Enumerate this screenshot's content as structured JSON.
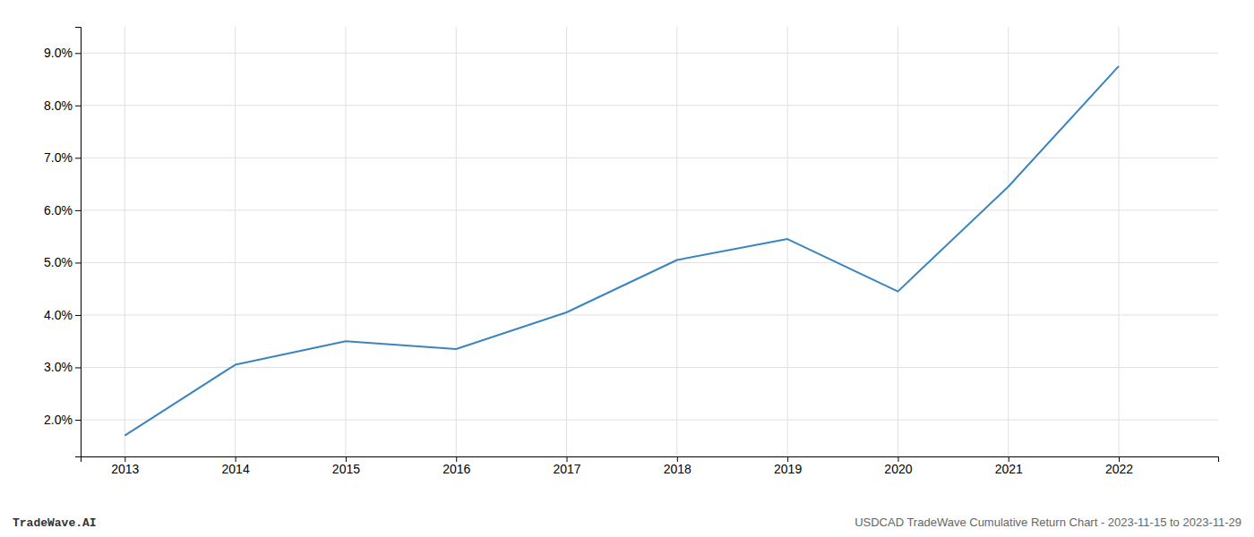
{
  "chart_data": {
    "type": "line",
    "x": [
      2013,
      2014,
      2015,
      2016,
      2017,
      2018,
      2019,
      2020,
      2021,
      2022
    ],
    "values": [
      0.017,
      0.0305,
      0.035,
      0.0335,
      0.0405,
      0.0505,
      0.0545,
      0.0445,
      0.0645,
      0.0875
    ],
    "color": "#3a85c0",
    "xlim": [
      2012.6,
      2022.9
    ],
    "xticks": [
      2013,
      2014,
      2015,
      2016,
      2017,
      2018,
      2019,
      2020,
      2021,
      2022
    ],
    "ylim": [
      0.013,
      0.095
    ],
    "yticks": [
      {
        "value": 0.02,
        "label": "2.0%"
      },
      {
        "value": 0.03,
        "label": "3.0%"
      },
      {
        "value": 0.04,
        "label": "4.0%"
      },
      {
        "value": 0.05,
        "label": "5.0%"
      },
      {
        "value": 0.06,
        "label": "6.0%"
      },
      {
        "value": 0.07,
        "label": "7.0%"
      },
      {
        "value": 0.08,
        "label": "8.0%"
      },
      {
        "value": 0.09,
        "label": "9.0%"
      }
    ],
    "grid": true,
    "annotations": [
      "TradeWave.AI",
      "USDCAD TradeWave Cumulative Return Chart - 2023-11-15 to 2023-11-29"
    ]
  }
}
